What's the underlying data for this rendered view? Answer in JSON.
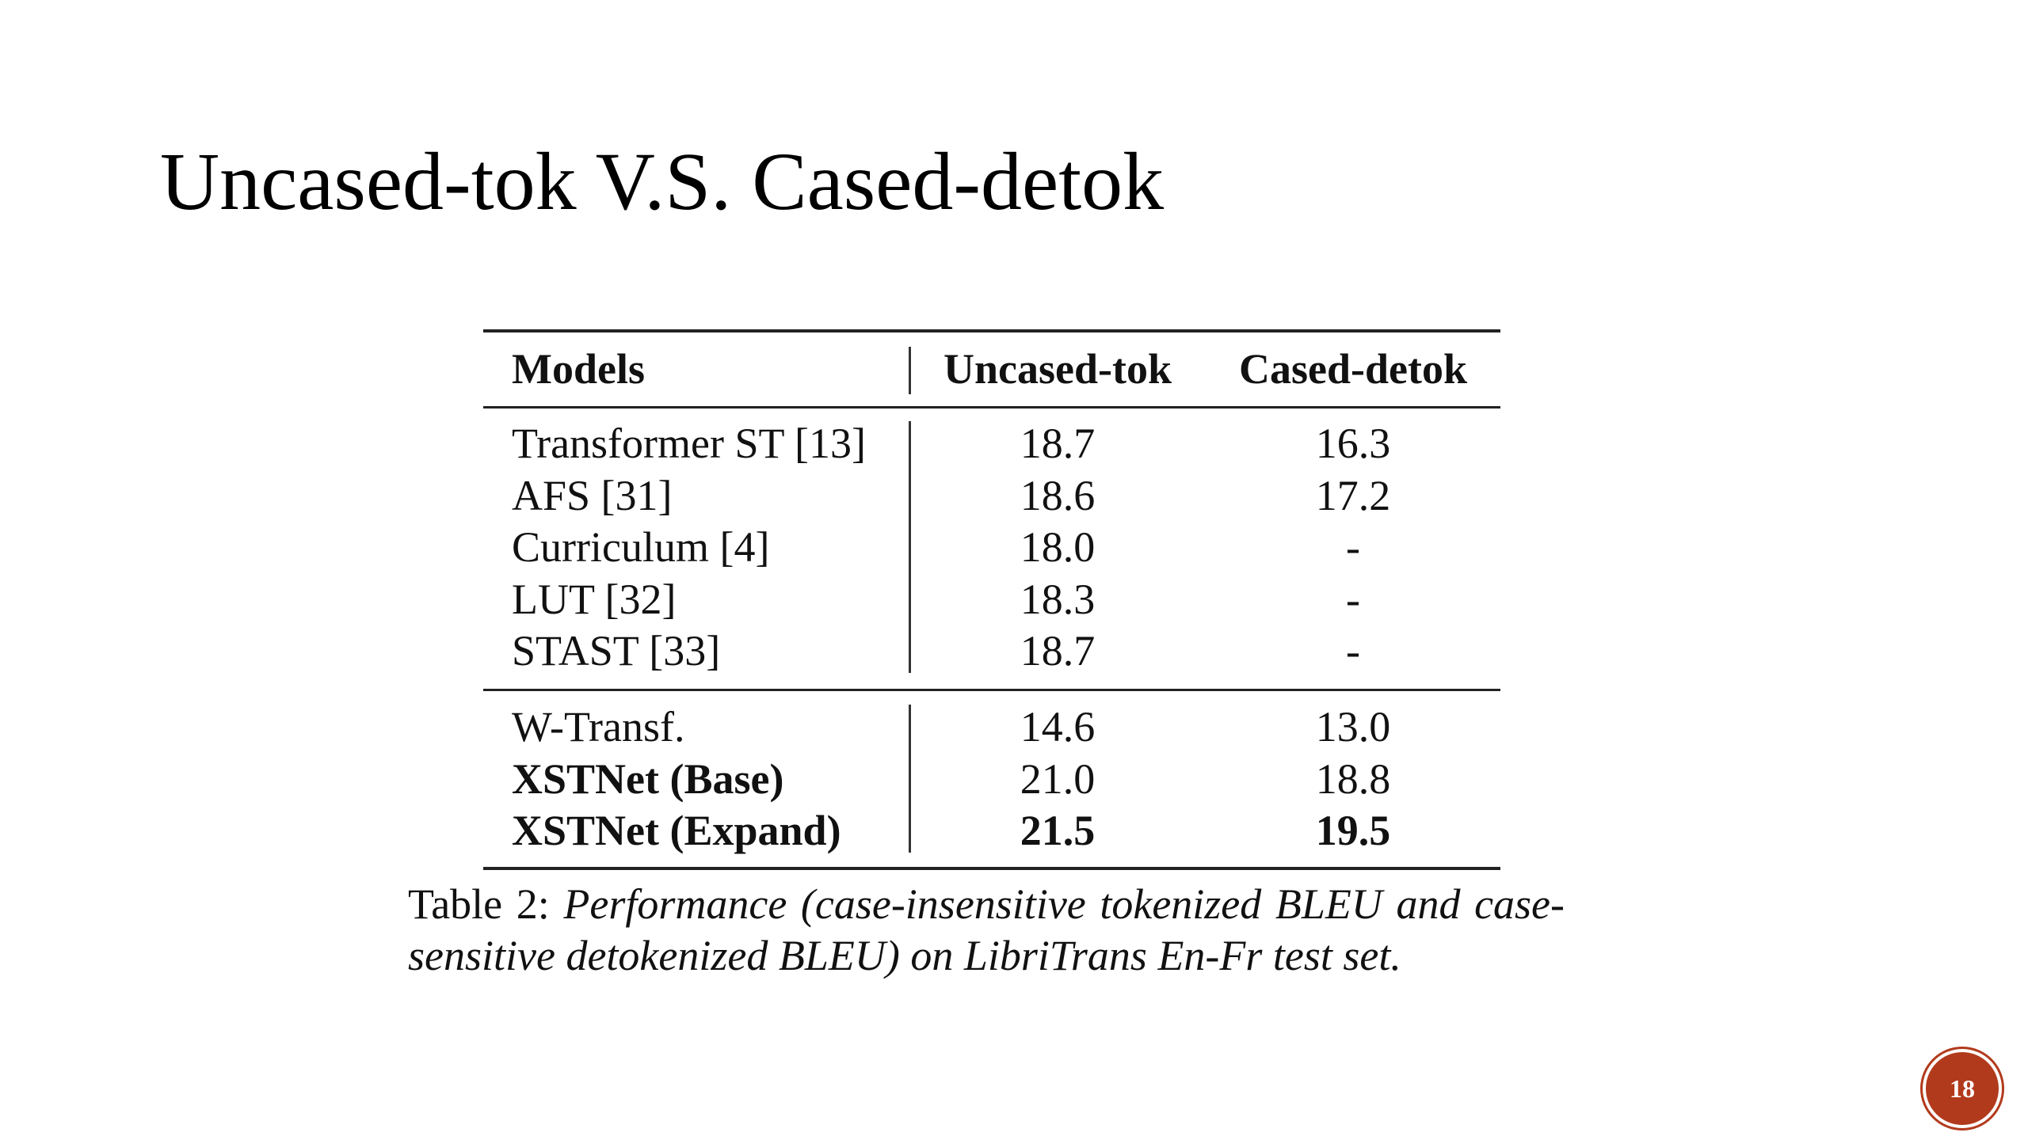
{
  "header": {
    "title": "Uncased-tok V.S. Cased-detok"
  },
  "table": {
    "columns": [
      "Models",
      "Uncased-tok",
      "Cased-detok"
    ],
    "groups": [
      [
        [
          "Transformer ST [13]",
          "18.7",
          "16.3"
        ],
        [
          "AFS [31]",
          "18.6",
          "17.2"
        ],
        [
          "Curriculum [4]",
          "18.0",
          "-"
        ],
        [
          "LUT [32]",
          "18.3",
          "-"
        ],
        [
          "STAST [33]",
          "18.7",
          "-"
        ]
      ],
      [
        [
          "W-Transf.",
          "14.6",
          "13.0"
        ],
        [
          "XSTNet (Base)",
          "21.0",
          "18.8"
        ],
        [
          "XSTNet (Expand)",
          "21.5",
          "19.5"
        ]
      ]
    ],
    "caption": {
      "label": "Table 2:",
      "text": "Performance (case-insensitive tokenized BLEU and case-sensitive detokenized BLEU) on LibriTrans En-Fr test set."
    }
  },
  "footer": {
    "page_number": "18"
  }
}
